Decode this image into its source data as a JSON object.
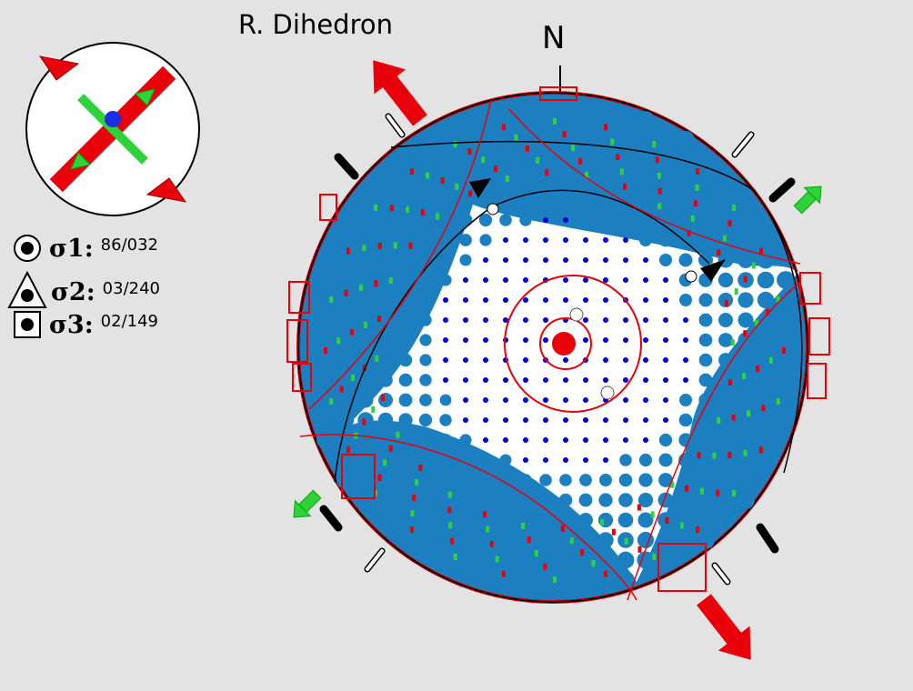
{
  "title": "R. Dihedron",
  "north_label": "N",
  "stress_axes": [
    {
      "label": "σ1:",
      "value": "86/032",
      "symbol": "circle-icon"
    },
    {
      "label": "σ2:",
      "value": "03/240",
      "symbol": "triangle-icon"
    },
    {
      "label": "σ3:",
      "value": "02/149",
      "symbol": "square-icon"
    }
  ],
  "colors": {
    "background": "#e3e3e3",
    "dot_blue": "#1b7fc0",
    "arrow_red": "#e8000b",
    "arrow_green": "#2fd23a",
    "kinematic_blue": "#0000d0",
    "outline": "#000000"
  }
}
